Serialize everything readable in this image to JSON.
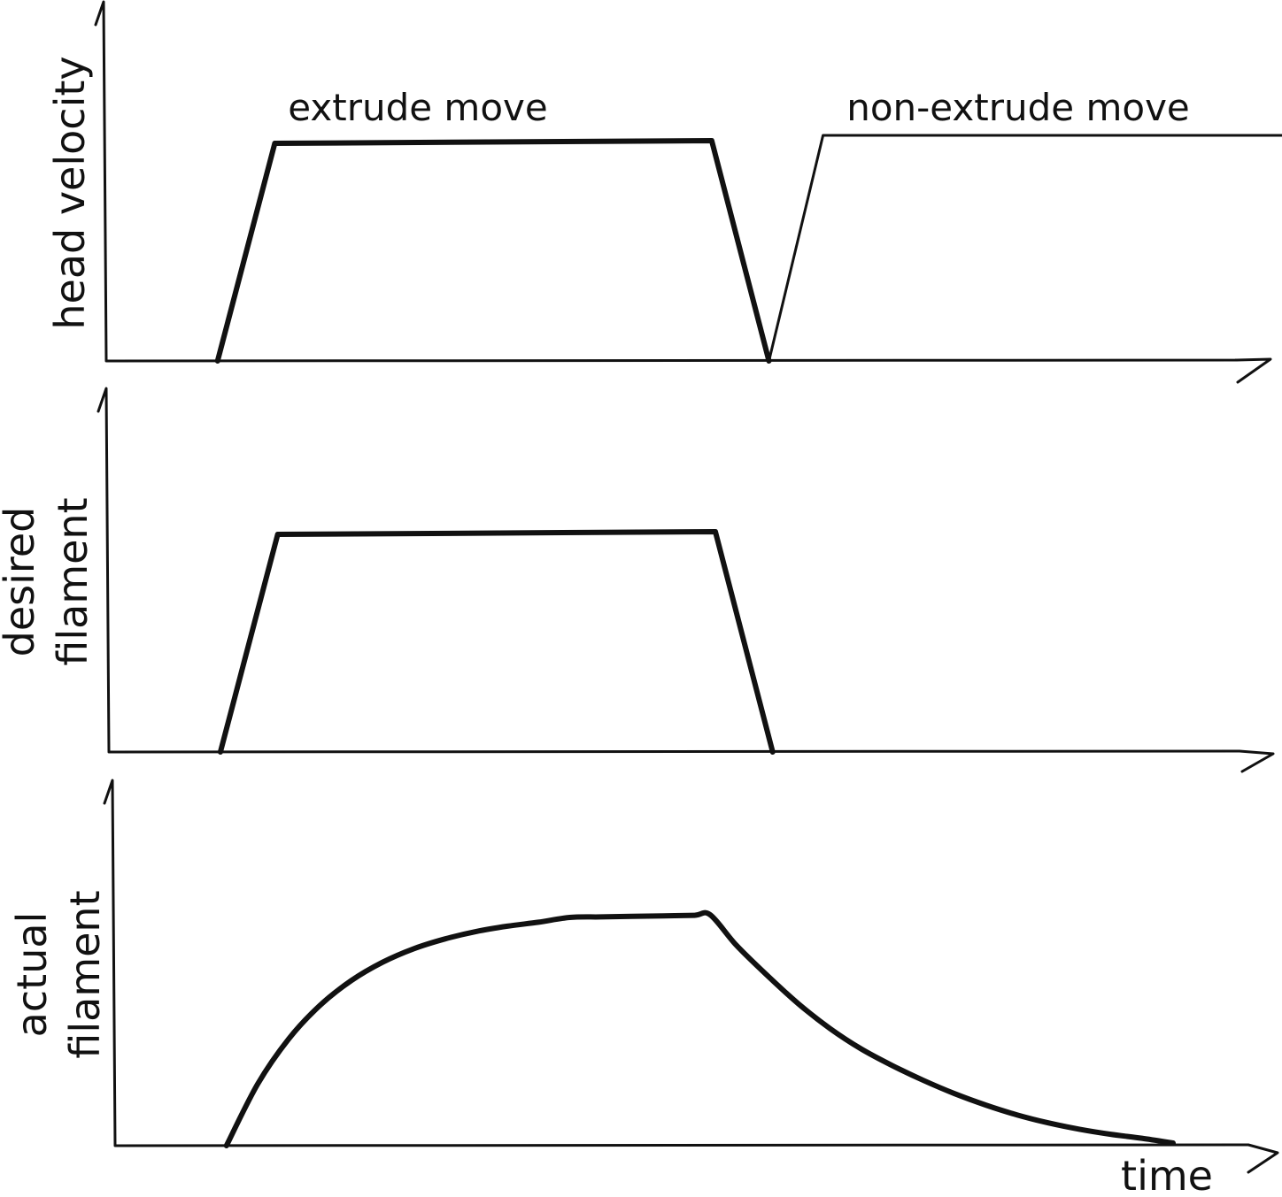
{
  "chart_data": [
    {
      "type": "line",
      "title": "",
      "ylabel": "head velocity",
      "xlabel": "",
      "annotations": [
        "extrude move",
        "non-extrude move"
      ],
      "grid": false,
      "xlim": [
        0,
        10
      ],
      "ylim": [
        0,
        10
      ],
      "series": [
        {
          "x": [
            0.9,
            1.45,
            5.65,
            6.2
          ],
          "y": [
            0,
            8.2,
            8.3,
            0
          ],
          "weight": "bold",
          "color": "#111111"
        },
        {
          "x": [
            6.2,
            6.72,
            11.2
          ],
          "y": [
            0,
            8.5,
            8.5
          ],
          "weight": "thin",
          "color": "#111111"
        }
      ]
    },
    {
      "type": "line",
      "title": "",
      "ylabel": [
        "desired",
        "filament"
      ],
      "xlabel": "",
      "annotations": [],
      "grid": false,
      "xlim": [
        0,
        10
      ],
      "ylim": [
        0,
        10
      ],
      "series": [
        {
          "x": [
            0.9,
            1.45,
            5.65,
            6.2
          ],
          "y": [
            0,
            8.2,
            8.3,
            0
          ],
          "weight": "bold",
          "color": "#111111"
        }
      ]
    },
    {
      "type": "line",
      "title": "",
      "ylabel": [
        "actual",
        "filament"
      ],
      "xlabel": "time",
      "annotations": [],
      "grid": false,
      "xlim": [
        0,
        10
      ],
      "ylim": [
        0,
        10
      ],
      "series": [
        {
          "x": [
            0.9,
            1.2,
            1.5,
            1.8,
            2.1,
            2.4,
            2.7,
            3.0,
            3.3,
            3.6,
            3.9,
            4.2,
            4.5,
            4.8,
            5.1,
            5.4,
            5.55,
            5.8,
            6.1,
            6.4,
            6.7,
            7.0,
            7.3,
            7.6,
            7.9,
            8.2,
            8.5,
            8.8,
            9.1,
            9.4,
            9.7,
            10.0
          ],
          "y": [
            0,
            2.32,
            4.03,
            5.29,
            6.22,
            6.91,
            7.42,
            7.79,
            8.07,
            8.27,
            8.42,
            8.6,
            8.62,
            8.64,
            8.66,
            8.68,
            8.7,
            7.56,
            6.41,
            5.34,
            4.42,
            3.65,
            3.02,
            2.46,
            1.96,
            1.53,
            1.16,
            0.86,
            0.62,
            0.43,
            0.28,
            0.1
          ],
          "weight": "bold",
          "color": "#111111"
        }
      ]
    }
  ]
}
